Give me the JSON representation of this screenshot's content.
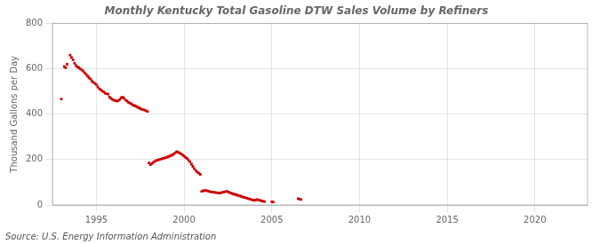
{
  "chart_data": {
    "type": "scatter",
    "title": "Monthly Kentucky Total Gasoline DTW Sales Volume by Refiners",
    "y_label": "Thousand Gallons per Day",
    "annotations": [
      "Source: U.S. Energy Information Administration"
    ],
    "color": "#cc0000",
    "marker": "square",
    "grid": true,
    "xlim": [
      1992.5,
      2023
    ],
    "ylim": [
      0,
      800
    ],
    "xticks": [
      1995,
      2000,
      2005,
      2010,
      2015,
      2020
    ],
    "yticks": [
      0,
      200,
      400,
      600,
      800
    ],
    "x": [
      1993.0,
      1993.17,
      1993.25,
      1993.33,
      1993.5,
      1993.58,
      1993.67,
      1993.75,
      1993.83,
      1993.92,
      1994.0,
      1994.08,
      1994.17,
      1994.25,
      1994.33,
      1994.42,
      1994.5,
      1994.58,
      1994.67,
      1994.75,
      1994.83,
      1994.92,
      1995.0,
      1995.08,
      1995.17,
      1995.25,
      1995.33,
      1995.42,
      1995.5,
      1995.58,
      1995.67,
      1995.75,
      1995.83,
      1995.92,
      1996.0,
      1996.08,
      1996.17,
      1996.25,
      1996.33,
      1996.42,
      1996.5,
      1996.58,
      1996.67,
      1996.75,
      1996.83,
      1996.92,
      1997.0,
      1997.08,
      1997.17,
      1997.25,
      1997.33,
      1997.42,
      1997.5,
      1997.58,
      1997.67,
      1997.75,
      1997.83,
      1997.92,
      1998.0,
      1998.08,
      1998.17,
      1998.25,
      1998.33,
      1998.42,
      1998.5,
      1998.58,
      1998.67,
      1998.75,
      1998.83,
      1998.92,
      1999.0,
      1999.08,
      1999.17,
      1999.25,
      1999.33,
      1999.42,
      1999.5,
      1999.58,
      1999.67,
      1999.75,
      1999.83,
      1999.92,
      2000.0,
      2000.08,
      2000.17,
      2000.25,
      2000.33,
      2000.42,
      2000.5,
      2000.58,
      2000.67,
      2000.75,
      2000.83,
      2000.92,
      2001.0,
      2001.08,
      2001.17,
      2001.25,
      2001.33,
      2001.42,
      2001.5,
      2001.58,
      2001.67,
      2001.75,
      2001.83,
      2001.92,
      2002.0,
      2002.08,
      2002.17,
      2002.25,
      2002.33,
      2002.42,
      2002.5,
      2002.58,
      2002.67,
      2002.75,
      2002.83,
      2002.92,
      2003.0,
      2003.08,
      2003.17,
      2003.25,
      2003.33,
      2003.42,
      2003.5,
      2003.58,
      2003.67,
      2003.75,
      2003.83,
      2003.92,
      2004.0,
      2004.08,
      2004.17,
      2004.25,
      2004.33,
      2004.42,
      2004.5,
      2004.58,
      2005.0,
      2005.08,
      2006.5,
      2006.58,
      2006.67
    ],
    "values": [
      467,
      610,
      605,
      620,
      660,
      650,
      640,
      625,
      615,
      608,
      605,
      600,
      595,
      590,
      582,
      575,
      568,
      560,
      555,
      545,
      540,
      535,
      530,
      520,
      512,
      508,
      502,
      498,
      492,
      490,
      488,
      475,
      470,
      465,
      462,
      460,
      458,
      460,
      465,
      472,
      475,
      470,
      462,
      458,
      452,
      448,
      445,
      440,
      438,
      435,
      432,
      428,
      425,
      422,
      420,
      418,
      415,
      412,
      185,
      178,
      182,
      188,
      192,
      196,
      198,
      200,
      202,
      204,
      206,
      208,
      210,
      212,
      215,
      218,
      220,
      225,
      230,
      235,
      232,
      228,
      225,
      220,
      215,
      210,
      205,
      198,
      190,
      180,
      170,
      160,
      152,
      145,
      140,
      135,
      60,
      62,
      64,
      63,
      62,
      60,
      58,
      57,
      56,
      55,
      54,
      53,
      52,
      53,
      55,
      57,
      58,
      60,
      58,
      55,
      52,
      50,
      48,
      46,
      44,
      42,
      40,
      38,
      36,
      34,
      32,
      30,
      28,
      26,
      24,
      22,
      20,
      22,
      24,
      22,
      20,
      18,
      16,
      15,
      14,
      13,
      28,
      26,
      24
    ]
  }
}
